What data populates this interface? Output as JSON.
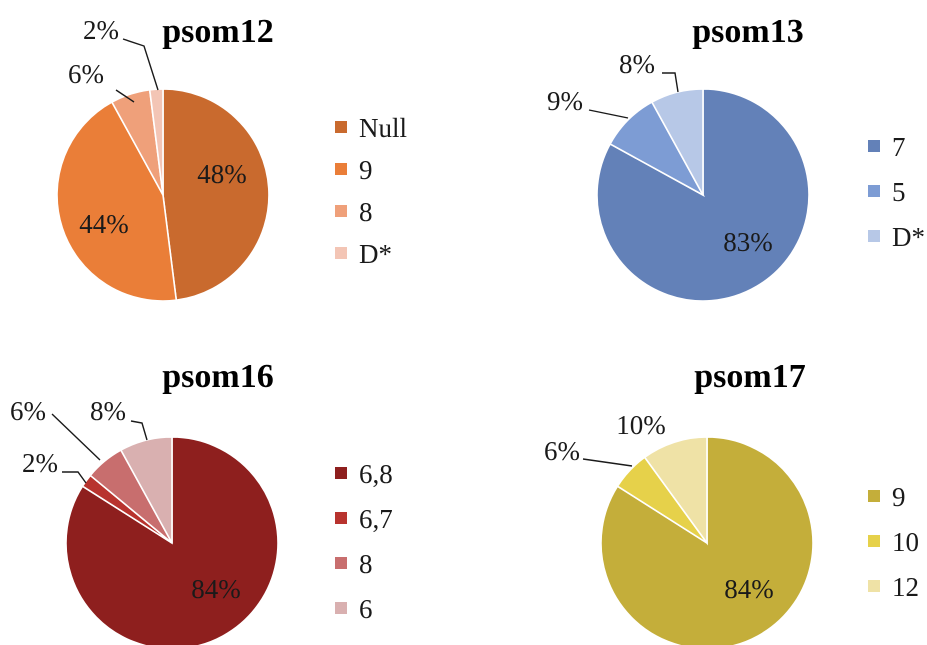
{
  "chart_data": [
    {
      "type": "pie",
      "title": "psom12",
      "slices": [
        {
          "label": "Null",
          "value": 48,
          "color": "#C96A2E"
        },
        {
          "label": "9",
          "value": 44,
          "color": "#EA7E38"
        },
        {
          "label": "8",
          "value": 6,
          "color": "#EFA07A"
        },
        {
          "label": "D*",
          "value": 2,
          "color": "#F3C5B5"
        }
      ],
      "data_labels": [
        "48%",
        "44%",
        "6%",
        "2%"
      ],
      "legend": [
        "Null",
        "9",
        "8",
        "D*"
      ]
    },
    {
      "type": "pie",
      "title": "psom13",
      "slices": [
        {
          "label": "7",
          "value": 83,
          "color": "#6381B8"
        },
        {
          "label": "5",
          "value": 9,
          "color": "#7D9CD4"
        },
        {
          "label": "D*",
          "value": 8,
          "color": "#B7C8E7"
        }
      ],
      "data_labels": [
        "83%",
        "9%",
        "8%"
      ],
      "legend": [
        "7",
        "5",
        "D*"
      ]
    },
    {
      "type": "pie",
      "title": "psom16",
      "slices": [
        {
          "label": "6,8",
          "value": 84,
          "color": "#8E1F1E"
        },
        {
          "label": "6,7",
          "value": 2,
          "color": "#B8332E"
        },
        {
          "label": "8",
          "value": 6,
          "color": "#C86E6E"
        },
        {
          "label": "6",
          "value": 8,
          "color": "#D9B0B0"
        }
      ],
      "data_labels": [
        "84%",
        "2%",
        "6%",
        "8%"
      ],
      "legend": [
        "6,8",
        "6,7",
        "8",
        "6"
      ]
    },
    {
      "type": "pie",
      "title": "psom17",
      "slices": [
        {
          "label": "9",
          "value": 84,
          "color": "#C4AE3A"
        },
        {
          "label": "10",
          "value": 6,
          "color": "#E6D14A"
        },
        {
          "label": "12",
          "value": 10,
          "color": "#EFE2A6"
        }
      ],
      "data_labels": [
        "84%",
        "6%",
        "10%"
      ],
      "legend": [
        "9",
        "10",
        "12"
      ]
    }
  ]
}
